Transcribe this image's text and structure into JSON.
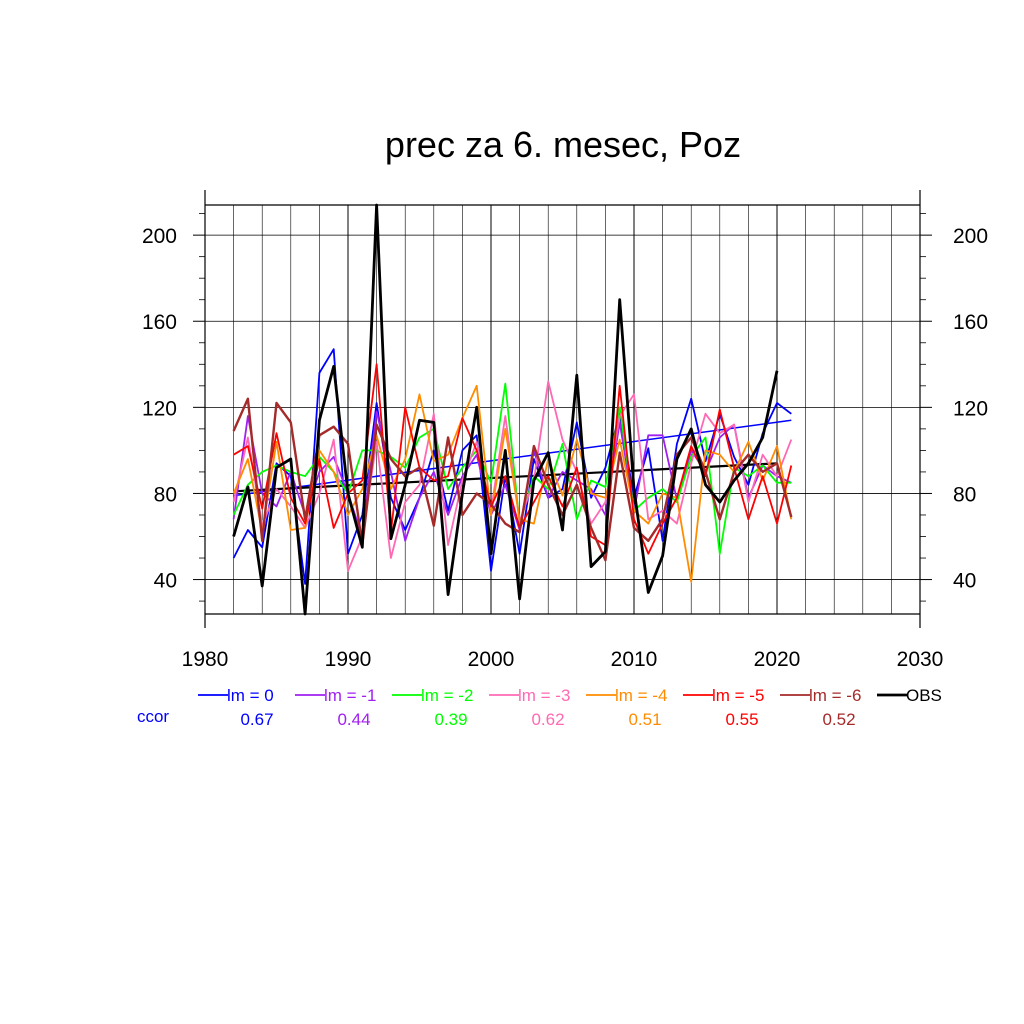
{
  "chart_data": {
    "type": "line",
    "title": "prec za 6. mesec, Poz",
    "xlabel": "",
    "ylabel": "",
    "xlim": [
      1980,
      2030
    ],
    "ylim": [
      24,
      214
    ],
    "x_ticks": [
      1980,
      1990,
      2000,
      2010,
      2020,
      2030
    ],
    "x_tick_labels": [
      "1980",
      "1990",
      "2000",
      "2010",
      "2020",
      "2030"
    ],
    "y_ticks": [
      40,
      80,
      120,
      160,
      200
    ],
    "y_tick_labels": [
      "40",
      "80",
      "120",
      "160",
      "200"
    ],
    "grid": true,
    "legend_position": "bottom",
    "x": [
      1982,
      1983,
      1984,
      1985,
      1986,
      1987,
      1988,
      1989,
      1990,
      1991,
      1992,
      1993,
      1994,
      1995,
      1996,
      1997,
      1998,
      1999,
      2000,
      2001,
      2002,
      2003,
      2004,
      2005,
      2006,
      2007,
      2008,
      2009,
      2010,
      2011,
      2012,
      2013,
      2014,
      2015,
      2016,
      2017,
      2018,
      2019,
      2020,
      2021
    ],
    "series": [
      {
        "name": "lm = 0",
        "color": "#0000ff",
        "width": 1.8,
        "values": [
          50,
          63,
          55,
          94,
          88,
          38,
          136,
          147,
          52,
          70,
          122,
          78,
          63,
          78,
          100,
          72,
          100,
          107,
          44,
          88,
          52,
          96,
          78,
          82,
          113,
          78,
          92,
          117,
          78,
          101,
          58,
          103,
          124,
          95,
          117,
          97,
          84,
          108,
          122,
          117
        ],
        "trend": [
          79,
          114
        ]
      },
      {
        "name": "lm = -1",
        "color": "#a020f0",
        "width": 1.8,
        "values": [
          68,
          116,
          80,
          74,
          90,
          70,
          90,
          97,
          80,
          60,
          118,
          90,
          58,
          78,
          90,
          70,
          88,
          98,
          70,
          84,
          63,
          100,
          78,
          90,
          86,
          82,
          70,
          113,
          72,
          107,
          107,
          77,
          100,
          90,
          106,
          112,
          78,
          93,
          88,
          85
        ]
      },
      {
        "name": "lm = -2",
        "color": "#00ff00",
        "width": 1.8,
        "values": [
          70,
          84,
          90,
          93,
          90,
          88,
          97,
          90,
          80,
          100,
          100,
          97,
          92,
          106,
          110,
          82,
          92,
          100,
          85,
          131,
          66,
          88,
          82,
          103,
          68,
          86,
          83,
          120,
          72,
          78,
          82,
          76,
          97,
          106,
          52,
          92,
          88,
          93,
          85,
          85
        ]
      },
      {
        "name": "lm = -3",
        "color": "#ff69b4",
        "width": 1.8,
        "values": [
          76,
          106,
          65,
          82,
          74,
          64,
          80,
          105,
          44,
          60,
          104,
          50,
          76,
          84,
          117,
          56,
          86,
          104,
          72,
          116,
          67,
          86,
          132,
          105,
          90,
          66,
          76,
          116,
          126,
          68,
          72,
          66,
          94,
          117,
          108,
          112,
          76,
          98,
          88,
          105
        ]
      },
      {
        "name": "lm = -4",
        "color": "#ff8c00",
        "width": 1.8,
        "values": [
          80,
          96,
          62,
          104,
          63,
          64,
          100,
          90,
          70,
          82,
          107,
          82,
          96,
          126,
          95,
          98,
          115,
          130,
          70,
          110,
          68,
          66,
          96,
          79,
          105,
          80,
          78,
          105,
          72,
          66,
          80,
          78,
          39,
          100,
          98,
          90,
          104,
          86,
          102,
          68
        ]
      },
      {
        "name": "lm = -5",
        "color": "#ff0000",
        "width": 1.8,
        "values": [
          98,
          102,
          73,
          108,
          78,
          66,
          96,
          64,
          80,
          86,
          140,
          62,
          120,
          92,
          86,
          88,
          115,
          100,
          74,
          88,
          64,
          76,
          88,
          74,
          92,
          60,
          56,
          130,
          68,
          52,
          66,
          78,
          102,
          88,
          119,
          92,
          68,
          88,
          66,
          93
        ]
      },
      {
        "name": "lm = -6",
        "color": "#a52a2a",
        "width": 2.4,
        "values": [
          109,
          124,
          58,
          122,
          113,
          68,
          107,
          111,
          103,
          56,
          112,
          96,
          88,
          92,
          65,
          106,
          70,
          80,
          75,
          66,
          62,
          102,
          84,
          70,
          84,
          64,
          49,
          99,
          64,
          58,
          68,
          98,
          106,
          90,
          68,
          90,
          98,
          90,
          94,
          69
        ]
      },
      {
        "name": "OBS",
        "color": "#000000",
        "width": 2.8,
        "values": [
          60,
          83,
          37,
          92,
          96,
          24,
          114,
          139,
          80,
          55,
          214,
          59,
          84,
          114,
          113,
          33,
          80,
          120,
          52,
          100,
          31,
          86,
          99,
          63,
          135,
          46,
          53,
          170,
          82,
          34,
          51,
          96,
          110,
          84,
          76,
          86,
          94,
          106,
          137,
          null
        ],
        "trend": [
          81,
          94
        ]
      }
    ],
    "ccor": {
      "label": "ccor",
      "label_color": "#0000ff",
      "values": [
        "0.67",
        "0.44",
        "0.39",
        "0.62",
        "0.51",
        "0.55",
        "0.52"
      ]
    }
  }
}
